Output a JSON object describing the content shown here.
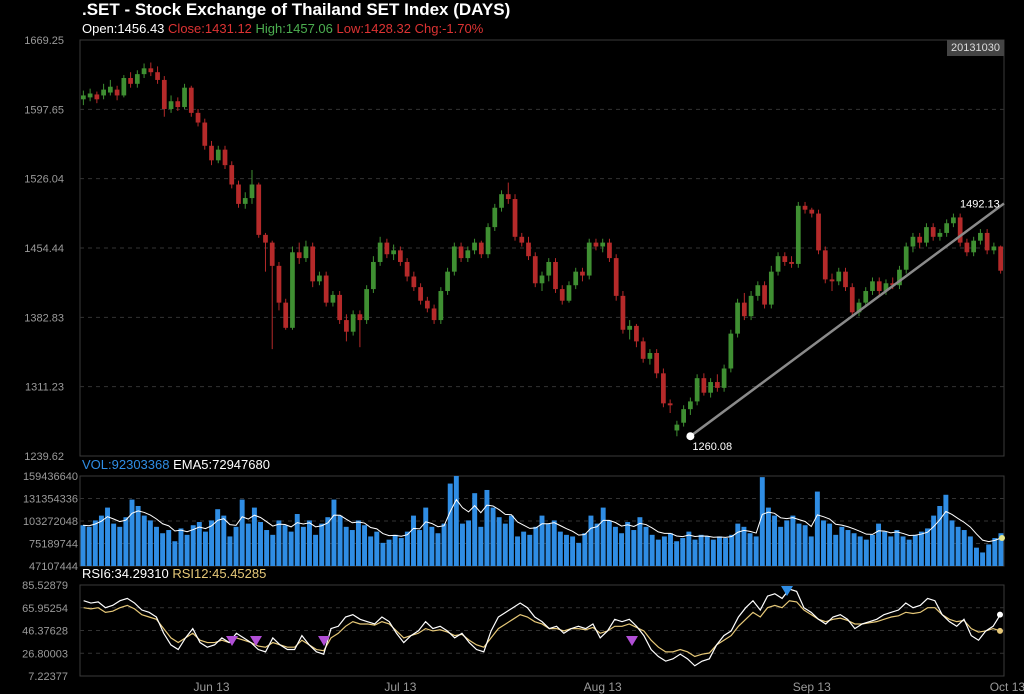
{
  "header": {
    "title": ".SET - Stock Exchange of Thailand SET Index (DAYS)",
    "open_label": "Open:",
    "open": "1456.43",
    "close_label": "Close:",
    "close": "1431.12",
    "high_label": "High:",
    "high": "1457.06",
    "low_label": "Low:",
    "low": "1428.32",
    "chg_label": "Chg:",
    "chg": "-1.70%",
    "date": "20131030"
  },
  "colors": {
    "up": "#3f8f32",
    "down": "#b52a2a",
    "volume": "#2f8de4",
    "ema": "#ffffff",
    "rsi6": "#ffffff",
    "rsi12": "#e6c878",
    "trendline": "#8a8a8a",
    "marker_down": "#b14fd6",
    "marker_up": "#2f8de4",
    "grid": "#333333",
    "axis_text": "#9a9a9a"
  },
  "chart_data": {
    "type": "candlestick",
    "price_axis": {
      "min": 1239.62,
      "max": 1669.25,
      "ticks": [
        "1669.25",
        "1597.65",
        "1526.04",
        "1454.44",
        "1382.83",
        "1311.23",
        "1239.62"
      ]
    },
    "x_labels": [
      "Jun 13",
      "Jul 13",
      "Aug 13",
      "Sep 13",
      "Oct 13"
    ],
    "x_label_index": [
      19,
      47,
      77,
      108,
      137
    ],
    "candles": [
      [
        1608,
        1612,
        1602,
        1617
      ],
      [
        1610,
        1614,
        1606,
        1619
      ],
      [
        1613,
        1608,
        1604,
        1616
      ],
      [
        1612,
        1618,
        1608,
        1624
      ],
      [
        1615,
        1621,
        1612,
        1628
      ],
      [
        1618,
        1612,
        1607,
        1622
      ],
      [
        1612,
        1630,
        1610,
        1633
      ],
      [
        1630,
        1624,
        1620,
        1636
      ],
      [
        1624,
        1634,
        1620,
        1638
      ],
      [
        1634,
        1640,
        1630,
        1645
      ],
      [
        1640,
        1636,
        1632,
        1646
      ],
      [
        1636,
        1628,
        1624,
        1642
      ],
      [
        1628,
        1598,
        1590,
        1632
      ],
      [
        1598,
        1606,
        1594,
        1612
      ],
      [
        1606,
        1600,
        1596,
        1610
      ],
      [
        1600,
        1620,
        1598,
        1624
      ],
      [
        1620,
        1594,
        1590,
        1622
      ],
      [
        1594,
        1584,
        1580,
        1598
      ],
      [
        1584,
        1560,
        1556,
        1588
      ],
      [
        1560,
        1545,
        1540,
        1565
      ],
      [
        1545,
        1556,
        1542,
        1560
      ],
      [
        1556,
        1540,
        1536,
        1560
      ],
      [
        1540,
        1520,
        1516,
        1544
      ],
      [
        1520,
        1500,
        1496,
        1524
      ],
      [
        1500,
        1506,
        1495,
        1512
      ],
      [
        1506,
        1520,
        1500,
        1535
      ],
      [
        1520,
        1468,
        1465,
        1522
      ],
      [
        1468,
        1460,
        1430,
        1470
      ],
      [
        1460,
        1436,
        1350,
        1462
      ],
      [
        1436,
        1398,
        1390,
        1440
      ],
      [
        1398,
        1372,
        1370,
        1402
      ],
      [
        1372,
        1450,
        1370,
        1456
      ],
      [
        1450,
        1444,
        1438,
        1460
      ],
      [
        1444,
        1456,
        1440,
        1462
      ],
      [
        1456,
        1420,
        1414,
        1460
      ],
      [
        1420,
        1426,
        1416,
        1430
      ],
      [
        1426,
        1398,
        1394,
        1430
      ],
      [
        1398,
        1406,
        1394,
        1410
      ],
      [
        1406,
        1380,
        1376,
        1410
      ],
      [
        1380,
        1368,
        1358,
        1386
      ],
      [
        1368,
        1386,
        1364,
        1390
      ],
      [
        1386,
        1380,
        1352,
        1390
      ],
      [
        1380,
        1412,
        1376,
        1416
      ],
      [
        1412,
        1440,
        1408,
        1446
      ],
      [
        1440,
        1460,
        1436,
        1466
      ],
      [
        1460,
        1448,
        1444,
        1464
      ],
      [
        1448,
        1452,
        1442,
        1458
      ],
      [
        1452,
        1440,
        1436,
        1456
      ],
      [
        1440,
        1425,
        1420,
        1444
      ],
      [
        1425,
        1414,
        1410,
        1430
      ],
      [
        1414,
        1400,
        1396,
        1418
      ],
      [
        1400,
        1392,
        1388,
        1404
      ],
      [
        1392,
        1380,
        1376,
        1396
      ],
      [
        1380,
        1410,
        1376,
        1414
      ],
      [
        1410,
        1430,
        1406,
        1434
      ],
      [
        1430,
        1456,
        1426,
        1460
      ],
      [
        1456,
        1444,
        1440,
        1460
      ],
      [
        1444,
        1452,
        1440,
        1456
      ],
      [
        1452,
        1460,
        1448,
        1464
      ],
      [
        1460,
        1448,
        1444,
        1462
      ],
      [
        1448,
        1476,
        1444,
        1480
      ],
      [
        1476,
        1496,
        1472,
        1500
      ],
      [
        1496,
        1510,
        1492,
        1514
      ],
      [
        1510,
        1505,
        1500,
        1522
      ],
      [
        1505,
        1466,
        1462,
        1510
      ],
      [
        1466,
        1460,
        1456,
        1470
      ],
      [
        1460,
        1446,
        1442,
        1466
      ],
      [
        1446,
        1418,
        1414,
        1450
      ],
      [
        1418,
        1426,
        1410,
        1430
      ],
      [
        1426,
        1440,
        1420,
        1444
      ],
      [
        1440,
        1412,
        1408,
        1444
      ],
      [
        1412,
        1400,
        1396,
        1416
      ],
      [
        1400,
        1416,
        1398,
        1420
      ],
      [
        1416,
        1430,
        1412,
        1434
      ],
      [
        1430,
        1426,
        1420,
        1434
      ],
      [
        1426,
        1460,
        1422,
        1464
      ],
      [
        1460,
        1456,
        1452,
        1464
      ],
      [
        1456,
        1460,
        1450,
        1464
      ],
      [
        1460,
        1444,
        1440,
        1464
      ],
      [
        1444,
        1405,
        1400,
        1448
      ],
      [
        1405,
        1370,
        1366,
        1410
      ],
      [
        1370,
        1374,
        1360,
        1380
      ],
      [
        1374,
        1358,
        1352,
        1376
      ],
      [
        1358,
        1340,
        1336,
        1362
      ],
      [
        1340,
        1346,
        1334,
        1350
      ],
      [
        1346,
        1325,
        1320,
        1350
      ],
      [
        1325,
        1294,
        1290,
        1330
      ],
      [
        1294,
        1292,
        1284,
        1298
      ],
      [
        1266,
        1272,
        1260,
        1276
      ],
      [
        1274,
        1288,
        1270,
        1292
      ],
      [
        1288,
        1296,
        1282,
        1300
      ],
      [
        1296,
        1320,
        1292,
        1324
      ],
      [
        1320,
        1305,
        1302,
        1325
      ],
      [
        1305,
        1316,
        1300,
        1320
      ],
      [
        1316,
        1310,
        1306,
        1324
      ],
      [
        1310,
        1330,
        1306,
        1334
      ],
      [
        1330,
        1366,
        1326,
        1370
      ],
      [
        1366,
        1398,
        1362,
        1402
      ],
      [
        1398,
        1384,
        1380,
        1408
      ],
      [
        1384,
        1405,
        1380,
        1410
      ],
      [
        1405,
        1416,
        1400,
        1420
      ],
      [
        1416,
        1396,
        1392,
        1420
      ],
      [
        1396,
        1430,
        1392,
        1436
      ],
      [
        1430,
        1446,
        1426,
        1450
      ],
      [
        1446,
        1440,
        1436,
        1450
      ],
      [
        1440,
        1438,
        1434,
        1446
      ],
      [
        1438,
        1498,
        1434,
        1502
      ],
      [
        1498,
        1494,
        1490,
        1502
      ],
      [
        1494,
        1490,
        1486,
        1496
      ],
      [
        1490,
        1452,
        1448,
        1494
      ],
      [
        1452,
        1422,
        1418,
        1456
      ],
      [
        1422,
        1420,
        1410,
        1428
      ],
      [
        1420,
        1430,
        1416,
        1434
      ],
      [
        1430,
        1414,
        1410,
        1434
      ],
      [
        1414,
        1388,
        1384,
        1418
      ],
      [
        1388,
        1398,
        1384,
        1402
      ],
      [
        1398,
        1410,
        1394,
        1414
      ],
      [
        1410,
        1420,
        1406,
        1424
      ],
      [
        1420,
        1410,
        1406,
        1424
      ],
      [
        1410,
        1418,
        1406,
        1422
      ],
      [
        1418,
        1416,
        1412,
        1424
      ],
      [
        1416,
        1432,
        1412,
        1436
      ],
      [
        1432,
        1456,
        1428,
        1460
      ],
      [
        1456,
        1466,
        1450,
        1470
      ],
      [
        1466,
        1460,
        1454,
        1470
      ],
      [
        1460,
        1476,
        1456,
        1480
      ],
      [
        1476,
        1466,
        1462,
        1480
      ],
      [
        1466,
        1470,
        1462,
        1474
      ],
      [
        1470,
        1480,
        1466,
        1484
      ],
      [
        1480,
        1486,
        1476,
        1490
      ],
      [
        1486,
        1460,
        1456,
        1490
      ],
      [
        1460,
        1450,
        1446,
        1464
      ],
      [
        1450,
        1462,
        1446,
        1466
      ],
      [
        1462,
        1470,
        1458,
        1474
      ],
      [
        1470,
        1452,
        1448,
        1474
      ],
      [
        1452,
        1456,
        1448,
        1460
      ],
      [
        1456,
        1431,
        1428,
        1457
      ]
    ],
    "trendline": {
      "from": {
        "index": 90,
        "value": 1260.08
      },
      "to": {
        "index": 167,
        "value": 1492.13
      },
      "labels": [
        "1260.08",
        "1492.13"
      ]
    },
    "volume": {
      "label": "VOL:",
      "value": "92303368",
      "ema_label": "EMA5:",
      "ema_value": "72947680",
      "axis_min": 47107444,
      "axis_max": 159436640,
      "ticks": [
        "159436640",
        "131354336",
        "103272048",
        "75189744",
        "47107444"
      ],
      "values": [
        98,
        96,
        104,
        110,
        120,
        100,
        96,
        108,
        130,
        122,
        110,
        104,
        96,
        88,
        92,
        78,
        94,
        86,
        98,
        102,
        90,
        104,
        118,
        110,
        84,
        96,
        130,
        100,
        120,
        102,
        92,
        86,
        104,
        98,
        90,
        112,
        96,
        104,
        86,
        100,
        108,
        130,
        110,
        96,
        92,
        104,
        98,
        84,
        90,
        76,
        80,
        86,
        82,
        90,
        110,
        92,
        120,
        96,
        88,
        100,
        150,
        160,
        100,
        104,
        138,
        96,
        142,
        120,
        108,
        100,
        110,
        84,
        90,
        86,
        96,
        110,
        100,
        104,
        90,
        86,
        84,
        76,
        88,
        110,
        100,
        120,
        104,
        96,
        88,
        102,
        92,
        108,
        96,
        86,
        80,
        84,
        88,
        78,
        82,
        90,
        80,
        86,
        84,
        80,
        84,
        82,
        86,
        100,
        96,
        88,
        84,
        158,
        120,
        110,
        96,
        104,
        110,
        100,
        98,
        84,
        140,
        104,
        100,
        86,
        96,
        92,
        88,
        84,
        80,
        86,
        100,
        90,
        84,
        92,
        84,
        80,
        86,
        90,
        94,
        110,
        122,
        136,
        104,
        96,
        92,
        84,
        70,
        64,
        74,
        82,
        88
      ]
    },
    "rsi": {
      "label6": "RSI6:",
      "value6": "34.29310",
      "label12": "RSI12:",
      "value12": "45.45285",
      "axis_min": 7.22377,
      "axis_max": 85.52879,
      "ticks": [
        "85.52879",
        "65.95254",
        "46.37628",
        "26.80003",
        "7.22377"
      ],
      "rsi6": [
        72,
        70,
        71,
        66,
        68,
        72,
        74,
        70,
        64,
        62,
        58,
        44,
        34,
        30,
        40,
        48,
        36,
        32,
        34,
        40,
        36,
        44,
        40,
        36,
        30,
        28,
        40,
        34,
        30,
        30,
        42,
        34,
        28,
        26,
        48,
        50,
        58,
        60,
        56,
        54,
        52,
        58,
        54,
        44,
        36,
        42,
        46,
        54,
        48,
        50,
        46,
        40,
        44,
        36,
        30,
        28,
        46,
        58,
        62,
        66,
        70,
        66,
        58,
        54,
        48,
        50,
        44,
        48,
        50,
        48,
        52,
        40,
        46,
        56,
        54,
        56,
        50,
        42,
        30,
        24,
        20,
        22,
        26,
        22,
        16,
        20,
        22,
        34,
        42,
        46,
        58,
        66,
        72,
        64,
        76,
        78,
        74,
        82,
        80,
        66,
        62,
        56,
        52,
        58,
        60,
        56,
        48,
        52,
        54,
        56,
        60,
        62,
        64,
        70,
        66,
        68,
        74,
        72,
        60,
        54,
        50,
        56,
        42,
        38,
        46,
        50,
        60
      ],
      "rsi12": [
        66,
        65,
        66,
        62,
        63,
        66,
        68,
        65,
        60,
        58,
        56,
        48,
        40,
        36,
        40,
        44,
        38,
        36,
        36,
        38,
        36,
        40,
        38,
        36,
        33,
        32,
        36,
        34,
        32,
        32,
        38,
        34,
        30,
        29,
        40,
        44,
        50,
        54,
        52,
        52,
        51,
        54,
        52,
        46,
        40,
        42,
        44,
        48,
        46,
        47,
        45,
        42,
        43,
        38,
        34,
        32,
        40,
        48,
        52,
        56,
        60,
        58,
        54,
        52,
        48,
        48,
        46,
        48,
        48,
        47,
        49,
        44,
        46,
        50,
        50,
        52,
        49,
        46,
        38,
        32,
        28,
        28,
        30,
        28,
        24,
        26,
        27,
        34,
        38,
        42,
        50,
        56,
        62,
        58,
        66,
        68,
        66,
        72,
        71,
        64,
        60,
        56,
        54,
        56,
        57,
        55,
        52,
        52,
        53,
        54,
        56,
        58,
        59,
        62,
        61,
        62,
        66,
        66,
        60,
        56,
        54,
        55,
        48,
        45,
        46,
        48,
        46
      ]
    }
  }
}
